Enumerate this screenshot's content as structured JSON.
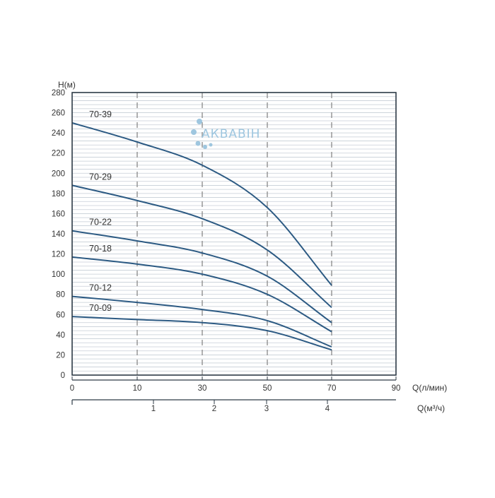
{
  "chart_data": {
    "type": "line",
    "ylabel": "H(м)",
    "xlabel": "Q(л/мин)",
    "x2label": "Q(м³/ч)",
    "ylim": [
      0,
      280
    ],
    "xlim": [
      0,
      90
    ],
    "yticks": [
      0,
      20,
      40,
      60,
      80,
      100,
      120,
      140,
      160,
      180,
      200,
      220,
      240,
      260,
      280
    ],
    "yticks_label": [
      "0",
      "20",
      "40",
      "60",
      "80",
      "100",
      "120",
      "140",
      "160",
      "180",
      "200",
      "220",
      "240",
      "260",
      "280"
    ],
    "xticks": [
      {
        "label": "0",
        "value": 0
      },
      {
        "label": "10",
        "value": 10
      },
      {
        "label": "30",
        "value": 30
      },
      {
        "label": "50",
        "value": 50
      },
      {
        "label": "70",
        "value": 70
      },
      {
        "label": "90",
        "value": 90
      }
    ],
    "x2ticks": [
      {
        "label": "1",
        "value": 1
      },
      {
        "label": "2",
        "value": 2
      },
      {
        "label": "3",
        "value": 3
      },
      {
        "label": "4",
        "value": 4
      }
    ],
    "reference_lines_x": [
      10,
      30,
      50,
      70
    ],
    "grid": true,
    "series": [
      {
        "name": "70-39",
        "x": [
          0,
          10,
          30,
          50,
          70
        ],
        "y": [
          250,
          231,
          208,
          166,
          89
        ]
      },
      {
        "name": "70-29",
        "x": [
          0,
          10,
          30,
          50,
          70
        ],
        "y": [
          188,
          173,
          155,
          124,
          67
        ]
      },
      {
        "name": "70-22",
        "x": [
          0,
          10,
          30,
          50,
          70
        ],
        "y": [
          143,
          133,
          121,
          98,
          52
        ]
      },
      {
        "name": "70-18",
        "x": [
          0,
          10,
          30,
          50,
          70
        ],
        "y": [
          117,
          110,
          100,
          80,
          43
        ]
      },
      {
        "name": "70-12",
        "x": [
          0,
          10,
          30,
          50,
          70
        ],
        "y": [
          78,
          72,
          65,
          54,
          28
        ]
      },
      {
        "name": "70-09",
        "x": [
          0,
          10,
          30,
          50,
          70
        ],
        "y": [
          58,
          55,
          52,
          44,
          25
        ]
      }
    ]
  },
  "logo": {
    "text": "АКВАВІН"
  },
  "colors": {
    "line": "#2c5a83",
    "grid": "#c6ced6",
    "axis": "#2d3a46",
    "dash": "#888888",
    "logo": "#9ec6df"
  }
}
